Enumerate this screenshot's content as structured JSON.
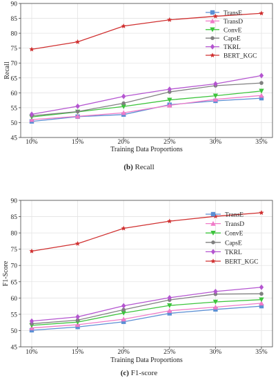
{
  "chart_data": [
    {
      "type": "line",
      "id": "recall",
      "caption_letter": "(b)",
      "caption_text": " Recall",
      "xlabel": "Training Data Proportions",
      "ylabel": "Recall",
      "categories": [
        "10%",
        "15%",
        "20%",
        "25%",
        "30%",
        "35%"
      ],
      "ylim": [
        45,
        90
      ],
      "yticks": [
        45,
        50,
        55,
        60,
        65,
        70,
        75,
        80,
        85,
        90
      ],
      "grid": true,
      "legend": "top-right",
      "series": [
        {
          "name": "TransE",
          "color": "#5b8fd4",
          "marker": "square",
          "values": [
            50.4,
            52.0,
            52.7,
            56.0,
            57.3,
            58.2
          ]
        },
        {
          "name": "TransD",
          "color": "#f07ac8",
          "marker": "triangle-up",
          "values": [
            51.0,
            52.1,
            53.3,
            55.8,
            57.8,
            59.1
          ]
        },
        {
          "name": "ConvE",
          "color": "#3cc43c",
          "marker": "triangle-down",
          "values": [
            51.9,
            53.6,
            55.4,
            57.6,
            59.0,
            60.6
          ]
        },
        {
          "name": "CapsE",
          "color": "#808080",
          "marker": "circle",
          "values": [
            52.3,
            53.7,
            56.5,
            60.3,
            62.4,
            63.3
          ]
        },
        {
          "name": "TKRL",
          "color": "#b455d0",
          "marker": "diamond",
          "values": [
            52.8,
            55.5,
            58.8,
            61.2,
            63.0,
            65.8
          ]
        },
        {
          "name": "BERT_KGC",
          "color": "#d03030",
          "marker": "star",
          "values": [
            74.6,
            77.1,
            82.4,
            84.5,
            85.7,
            86.7
          ]
        }
      ]
    },
    {
      "type": "line",
      "id": "f1",
      "caption_letter": "(c)",
      "caption_text": " F1-score",
      "xlabel": "Training Data Proportions",
      "ylabel": "F1-Score",
      "categories": [
        "10%",
        "15%",
        "20%",
        "25%",
        "30%",
        "35%"
      ],
      "ylim": [
        45,
        90
      ],
      "yticks": [
        45,
        50,
        55,
        60,
        65,
        70,
        75,
        80,
        85,
        90
      ],
      "grid": true,
      "legend": "top-right",
      "series": [
        {
          "name": "TransE",
          "color": "#5b8fd4",
          "marker": "square",
          "values": [
            50.1,
            51.1,
            52.7,
            55.3,
            56.5,
            57.5
          ]
        },
        {
          "name": "TransD",
          "color": "#f07ac8",
          "marker": "triangle-up",
          "values": [
            50.8,
            51.8,
            53.5,
            56.1,
            57.2,
            58.4
          ]
        },
        {
          "name": "ConvE",
          "color": "#3cc43c",
          "marker": "triangle-down",
          "values": [
            51.6,
            52.6,
            55.4,
            57.7,
            58.8,
            59.5
          ]
        },
        {
          "name": "CapsE",
          "color": "#808080",
          "marker": "circle",
          "values": [
            52.1,
            53.2,
            56.4,
            59.4,
            61.2,
            61.3
          ]
        },
        {
          "name": "TKRL",
          "color": "#b455d0",
          "marker": "diamond",
          "values": [
            52.9,
            54.2,
            57.6,
            60.1,
            62.0,
            63.3
          ]
        },
        {
          "name": "BERT_KGC",
          "color": "#d03030",
          "marker": "star",
          "values": [
            74.4,
            76.7,
            81.4,
            83.6,
            85.1,
            86.2
          ]
        }
      ]
    }
  ]
}
